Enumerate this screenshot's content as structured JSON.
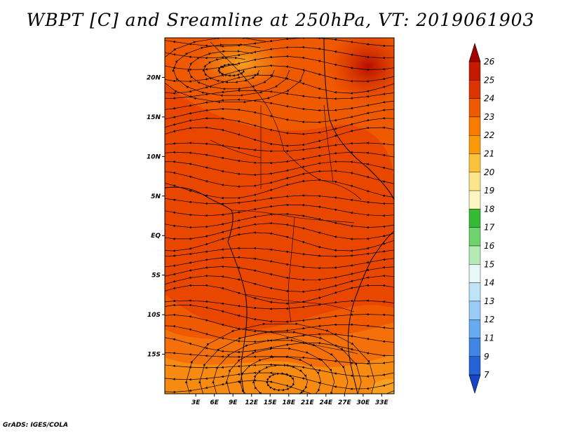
{
  "title": "WBPT [C] and Sreamline at 250hPa, VT: 2019061903",
  "credit": "GrADS: IGES/COLA",
  "map": {
    "lon_range": [
      -2,
      35
    ],
    "lat_range": [
      -20,
      25
    ],
    "x_ticks": [
      "3E",
      "6E",
      "9E",
      "12E",
      "15E",
      "18E",
      "21E",
      "24E",
      "27E",
      "30E",
      "33E"
    ],
    "x_tick_values": [
      3,
      6,
      9,
      12,
      15,
      18,
      21,
      24,
      27,
      30,
      33
    ],
    "y_ticks": [
      "20N",
      "15N",
      "10N",
      "5N",
      "EQ",
      "5S",
      "10S",
      "15S"
    ],
    "y_tick_values": [
      20,
      15,
      10,
      5,
      0,
      -5,
      -10,
      -15
    ]
  },
  "colorbar": {
    "levels": [
      "26",
      "25",
      "24",
      "23",
      "22",
      "21",
      "20",
      "19",
      "18",
      "17",
      "16",
      "15",
      "14",
      "13",
      "12",
      "11",
      "9",
      "7"
    ],
    "colors": [
      "#a50000",
      "#c41a00",
      "#dd3300",
      "#ef5a00",
      "#f77c00",
      "#fb9a08",
      "#fcc23c",
      "#fde68a",
      "#fdf6c0",
      "#33bb33",
      "#6fd36f",
      "#b4eab4",
      "#e6f8f8",
      "#bfe4f8",
      "#97cdf6",
      "#66aaef",
      "#3f86e4",
      "#2563d8",
      "#1346c8"
    ]
  }
}
